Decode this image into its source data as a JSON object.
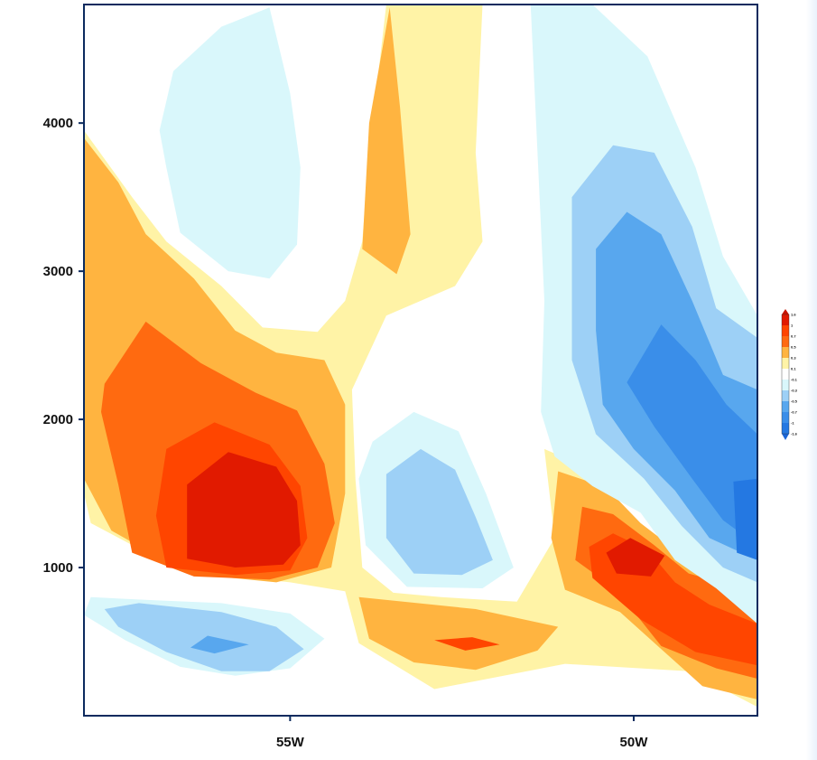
{
  "chart_data": {
    "type": "filled-contour",
    "title": "",
    "xlabel": "",
    "ylabel": "",
    "xlim": [
      -58.0,
      -48.2
    ],
    "ylim": [
      0,
      4800
    ],
    "x_ticks": [
      {
        "value": -55,
        "label": "55W"
      },
      {
        "value": -50,
        "label": "50W"
      }
    ],
    "y_ticks": [
      {
        "value": 1000,
        "label": "1000"
      },
      {
        "value": 2000,
        "label": "2000"
      },
      {
        "value": 3000,
        "label": "3000"
      },
      {
        "value": 4000,
        "label": "4000"
      }
    ],
    "colorbar": {
      "placement": "right",
      "labels": [
        "1.6",
        "1",
        "0.7",
        "0.5",
        "0.3",
        "0.1",
        "-0.1",
        "-0.3",
        "-0.5",
        "-0.7",
        "-1",
        "-1.6"
      ],
      "colors": [
        "#c81400",
        "#e11a00",
        "#ff4500",
        "#ff6a10",
        "#ffb440",
        "#fff3a6",
        "#ffffff",
        "#d9f7fb",
        "#9dd0f6",
        "#58a7ee",
        "#3a8ee9",
        "#2478e2",
        "#1a65d6"
      ]
    },
    "levels": [
      {
        "value": 0.3,
        "color": "#fff3a6"
      },
      {
        "value": 0.5,
        "color": "#ffb440"
      },
      {
        "value": 0.7,
        "color": "#ff6a10"
      },
      {
        "value": 1.0,
        "color": "#ff4500"
      },
      {
        "value": 1.6,
        "color": "#e11a00"
      },
      {
        "value": -0.1,
        "color": "#d9f7fb"
      },
      {
        "value": -0.3,
        "color": "#9dd0f6"
      },
      {
        "value": -0.5,
        "color": "#58a7ee"
      },
      {
        "value": -0.7,
        "color": "#3a8ee9"
      },
      {
        "value": -1.0,
        "color": "#2478e2"
      }
    ],
    "regions": [
      {
        "sign": "positive",
        "level": 0.3,
        "points": [
          [
            -58.0,
            3950
          ],
          [
            -57.3,
            3500
          ],
          [
            -56.8,
            3200
          ],
          [
            -56.0,
            2900
          ],
          [
            -55.4,
            2620
          ],
          [
            -54.6,
            2590
          ],
          [
            -54.2,
            2800
          ],
          [
            -53.95,
            3200
          ],
          [
            -53.85,
            3800
          ],
          [
            -53.6,
            4800
          ],
          [
            -52.2,
            4800
          ],
          [
            -52.3,
            3800
          ],
          [
            -52.2,
            3200
          ],
          [
            -52.6,
            2900
          ],
          [
            -53.6,
            2700
          ],
          [
            -54.1,
            2200
          ],
          [
            -54.05,
            1600
          ],
          [
            -53.95,
            1000
          ],
          [
            -53.5,
            830
          ],
          [
            -52.8,
            800
          ],
          [
            -51.7,
            770
          ],
          [
            -51.15,
            1200
          ],
          [
            -51.3,
            1800
          ],
          [
            -50.6,
            1660
          ],
          [
            -50.2,
            1380
          ],
          [
            -49.3,
            1000
          ],
          [
            -48.2,
            780
          ],
          [
            -48.2,
            60
          ],
          [
            -49.2,
            300
          ],
          [
            -51.0,
            350
          ],
          [
            -52.9,
            180
          ],
          [
            -54.0,
            490
          ],
          [
            -54.2,
            840
          ],
          [
            -55.0,
            900
          ],
          [
            -56.6,
            980
          ],
          [
            -57.9,
            1300
          ],
          [
            -58.0,
            1500
          ]
        ]
      },
      {
        "sign": "positive",
        "level": 0.5,
        "points": [
          [
            -58.0,
            3900
          ],
          [
            -57.5,
            3600
          ],
          [
            -57.1,
            3250
          ],
          [
            -56.4,
            2950
          ],
          [
            -55.8,
            2600
          ],
          [
            -55.2,
            2450
          ],
          [
            -54.5,
            2400
          ],
          [
            -54.2,
            2100
          ],
          [
            -54.2,
            1500
          ],
          [
            -54.4,
            1000
          ],
          [
            -55.2,
            900
          ],
          [
            -56.5,
            960
          ],
          [
            -57.6,
            1250
          ],
          [
            -58.0,
            1600
          ]
        ]
      },
      {
        "sign": "positive",
        "level": 0.5,
        "points": [
          [
            -53.55,
            4780
          ],
          [
            -53.85,
            4000
          ],
          [
            -53.95,
            3150
          ],
          [
            -53.45,
            2980
          ],
          [
            -53.25,
            3250
          ],
          [
            -53.4,
            4100
          ]
        ]
      },
      {
        "sign": "positive",
        "level": 0.5,
        "points": [
          [
            -54.0,
            800
          ],
          [
            -52.3,
            720
          ],
          [
            -51.1,
            600
          ],
          [
            -51.4,
            440
          ],
          [
            -52.3,
            310
          ],
          [
            -53.2,
            360
          ],
          [
            -53.85,
            520
          ]
        ]
      },
      {
        "sign": "positive",
        "level": 0.5,
        "points": [
          [
            -51.1,
            1650
          ],
          [
            -50.4,
            1540
          ],
          [
            -49.9,
            1300
          ],
          [
            -49.2,
            1050
          ],
          [
            -48.2,
            770
          ],
          [
            -48.2,
            110
          ],
          [
            -49.0,
            200
          ],
          [
            -49.6,
            450
          ],
          [
            -50.2,
            700
          ],
          [
            -51.0,
            850
          ],
          [
            -51.2,
            1200
          ]
        ]
      },
      {
        "sign": "positive",
        "level": 0.7,
        "points": [
          [
            -57.7,
            2240
          ],
          [
            -57.1,
            2660
          ],
          [
            -56.3,
            2380
          ],
          [
            -55.5,
            2180
          ],
          [
            -54.9,
            2060
          ],
          [
            -54.5,
            1700
          ],
          [
            -54.35,
            1300
          ],
          [
            -54.6,
            1000
          ],
          [
            -55.3,
            920
          ],
          [
            -56.4,
            940
          ],
          [
            -57.3,
            1100
          ],
          [
            -57.5,
            1560
          ],
          [
            -57.75,
            2050
          ]
        ]
      },
      {
        "sign": "positive",
        "level": 0.7,
        "points": [
          [
            -50.75,
            1410
          ],
          [
            -50.3,
            1360
          ],
          [
            -49.7,
            1150
          ],
          [
            -49.2,
            960
          ],
          [
            -48.2,
            830
          ],
          [
            -48.2,
            250
          ],
          [
            -48.8,
            320
          ],
          [
            -49.6,
            470
          ],
          [
            -50.25,
            850
          ],
          [
            -50.85,
            1050
          ]
        ]
      },
      {
        "sign": "positive",
        "level": 1.0,
        "points": [
          [
            -56.8,
            1800
          ],
          [
            -56.1,
            1980
          ],
          [
            -55.3,
            1830
          ],
          [
            -54.85,
            1550
          ],
          [
            -54.75,
            1200
          ],
          [
            -55.0,
            980
          ],
          [
            -55.8,
            950
          ],
          [
            -56.8,
            1000
          ],
          [
            -56.95,
            1350
          ]
        ]
      },
      {
        "sign": "positive",
        "level": 1.0,
        "points": [
          [
            -50.65,
            1140
          ],
          [
            -50.3,
            1230
          ],
          [
            -49.8,
            1120
          ],
          [
            -49.4,
            900
          ],
          [
            -48.9,
            750
          ],
          [
            -48.2,
            620
          ],
          [
            -48.2,
            340
          ],
          [
            -49.1,
            430
          ],
          [
            -49.9,
            650
          ],
          [
            -50.6,
            930
          ]
        ]
      },
      {
        "sign": "positive",
        "level": 1.0,
        "points": [
          [
            -52.9,
            510
          ],
          [
            -52.35,
            530
          ],
          [
            -51.95,
            480
          ],
          [
            -52.45,
            440
          ]
        ]
      },
      {
        "sign": "positive",
        "level": 1.6,
        "points": [
          [
            -56.5,
            1560
          ],
          [
            -55.9,
            1780
          ],
          [
            -55.2,
            1680
          ],
          [
            -54.9,
            1450
          ],
          [
            -54.85,
            1150
          ],
          [
            -55.1,
            1020
          ],
          [
            -55.8,
            1000
          ],
          [
            -56.5,
            1060
          ]
        ]
      },
      {
        "sign": "positive",
        "level": 1.6,
        "points": [
          [
            -50.4,
            1100
          ],
          [
            -50.05,
            1200
          ],
          [
            -49.55,
            1080
          ],
          [
            -49.75,
            940
          ],
          [
            -50.25,
            960
          ]
        ]
      },
      {
        "sign": "negative",
        "level": -0.1,
        "points": [
          [
            -56.9,
            3950
          ],
          [
            -56.7,
            4350
          ],
          [
            -56.0,
            4650
          ],
          [
            -55.3,
            4780
          ],
          [
            -55.0,
            4200
          ],
          [
            -54.85,
            3700
          ],
          [
            -54.9,
            3180
          ],
          [
            -55.3,
            2950
          ],
          [
            -55.9,
            3000
          ],
          [
            -56.6,
            3260
          ],
          [
            -56.8,
            3700
          ]
        ]
      },
      {
        "sign": "negative",
        "level": -0.1,
        "points": [
          [
            -51.5,
            4800
          ],
          [
            -50.6,
            4800
          ],
          [
            -49.8,
            4450
          ],
          [
            -49.1,
            3700
          ],
          [
            -48.7,
            3100
          ],
          [
            -48.2,
            2700
          ],
          [
            -48.2,
            620
          ],
          [
            -48.8,
            860
          ],
          [
            -49.4,
            1050
          ],
          [
            -49.9,
            1370
          ],
          [
            -50.6,
            1550
          ],
          [
            -51.15,
            1750
          ],
          [
            -51.35,
            2050
          ],
          [
            -51.3,
            2800
          ],
          [
            -51.4,
            3800
          ]
        ]
      },
      {
        "sign": "negative",
        "level": -0.1,
        "points": [
          [
            -53.8,
            1850
          ],
          [
            -53.2,
            2050
          ],
          [
            -52.55,
            1920
          ],
          [
            -52.15,
            1500
          ],
          [
            -51.75,
            1000
          ],
          [
            -52.2,
            860
          ],
          [
            -53.3,
            870
          ],
          [
            -53.9,
            1150
          ],
          [
            -54.0,
            1600
          ]
        ]
      },
      {
        "sign": "negative",
        "level": -0.1,
        "points": [
          [
            -57.9,
            800
          ],
          [
            -57.0,
            780
          ],
          [
            -56.0,
            760
          ],
          [
            -55.0,
            690
          ],
          [
            -54.5,
            520
          ],
          [
            -55.0,
            320
          ],
          [
            -55.8,
            270
          ],
          [
            -56.6,
            330
          ],
          [
            -57.4,
            510
          ],
          [
            -58.0,
            680
          ]
        ]
      },
      {
        "sign": "negative",
        "level": -0.3,
        "points": [
          [
            -50.9,
            3500
          ],
          [
            -50.3,
            3850
          ],
          [
            -49.7,
            3800
          ],
          [
            -49.15,
            3300
          ],
          [
            -48.8,
            2750
          ],
          [
            -48.2,
            2550
          ],
          [
            -48.2,
            900
          ],
          [
            -48.7,
            1000
          ],
          [
            -49.3,
            1280
          ],
          [
            -49.85,
            1600
          ],
          [
            -50.55,
            1900
          ],
          [
            -50.9,
            2400
          ]
        ]
      },
      {
        "sign": "negative",
        "level": -0.3,
        "points": [
          [
            -53.6,
            1630
          ],
          [
            -53.1,
            1800
          ],
          [
            -52.6,
            1660
          ],
          [
            -52.3,
            1340
          ],
          [
            -52.05,
            1050
          ],
          [
            -52.5,
            950
          ],
          [
            -53.2,
            960
          ],
          [
            -53.6,
            1200
          ]
        ]
      },
      {
        "sign": "negative",
        "level": -0.3,
        "points": [
          [
            -57.7,
            720
          ],
          [
            -57.2,
            760
          ],
          [
            -56.0,
            700
          ],
          [
            -55.2,
            600
          ],
          [
            -54.8,
            450
          ],
          [
            -55.3,
            300
          ],
          [
            -56.0,
            300
          ],
          [
            -56.8,
            430
          ],
          [
            -57.5,
            600
          ]
        ]
      },
      {
        "sign": "negative",
        "level": -0.5,
        "points": [
          [
            -50.55,
            3150
          ],
          [
            -50.1,
            3400
          ],
          [
            -49.6,
            3250
          ],
          [
            -49.15,
            2800
          ],
          [
            -48.7,
            2300
          ],
          [
            -48.2,
            2200
          ],
          [
            -48.2,
            1050
          ],
          [
            -48.9,
            1200
          ],
          [
            -49.4,
            1520
          ],
          [
            -50.0,
            1800
          ],
          [
            -50.45,
            2100
          ],
          [
            -50.55,
            2600
          ]
        ]
      },
      {
        "sign": "negative",
        "level": -0.5,
        "points": [
          [
            -56.2,
            540
          ],
          [
            -55.6,
            480
          ],
          [
            -56.1,
            420
          ],
          [
            -56.45,
            460
          ]
        ]
      },
      {
        "sign": "negative",
        "level": -0.7,
        "points": [
          [
            -50.1,
            2250
          ],
          [
            -49.6,
            2640
          ],
          [
            -49.1,
            2400
          ],
          [
            -48.65,
            2100
          ],
          [
            -48.2,
            1900
          ],
          [
            -48.2,
            1150
          ],
          [
            -48.7,
            1320
          ],
          [
            -49.15,
            1600
          ],
          [
            -49.7,
            1950
          ]
        ]
      },
      {
        "sign": "negative",
        "level": -1.0,
        "points": [
          [
            -48.55,
            1580
          ],
          [
            -48.2,
            1600
          ],
          [
            -48.2,
            1050
          ],
          [
            -48.5,
            1100
          ]
        ]
      }
    ]
  }
}
